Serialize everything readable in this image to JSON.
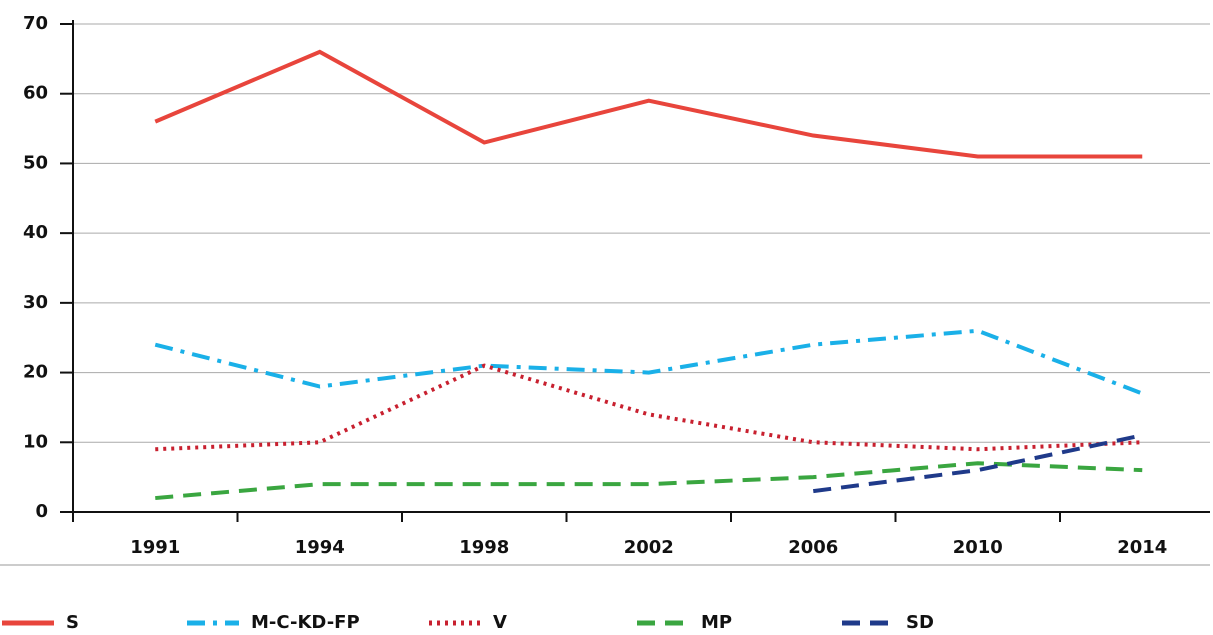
{
  "chart_data": {
    "type": "line",
    "categories": [
      "1991",
      "1994",
      "1998",
      "2002",
      "2006",
      "2010",
      "2014"
    ],
    "series": [
      {
        "name": "S",
        "color": "#e8453c",
        "style": "solid",
        "values": [
          56,
          66,
          53,
          59,
          54,
          51,
          51
        ]
      },
      {
        "name": "M-C-KD-FP",
        "color": "#1ab0e8",
        "style": "dashdot",
        "values": [
          24,
          18,
          21,
          20,
          24,
          26,
          17
        ]
      },
      {
        "name": "V",
        "color": "#c8202f",
        "style": "dotted",
        "values": [
          9,
          10,
          21,
          14,
          10,
          9,
          10
        ]
      },
      {
        "name": "MP",
        "color": "#3aa640",
        "style": "dashed",
        "values": [
          2,
          4,
          4,
          4,
          5,
          7,
          6
        ]
      },
      {
        "name": "SD",
        "color": "#1f3a8a",
        "style": "dashed",
        "values": [
          null,
          null,
          null,
          null,
          3,
          6,
          11
        ]
      }
    ],
    "ylim": [
      0,
      70
    ],
    "yticks": [
      0,
      10,
      20,
      30,
      40,
      50,
      60,
      70
    ],
    "grid": true,
    "legend": "bottom"
  }
}
